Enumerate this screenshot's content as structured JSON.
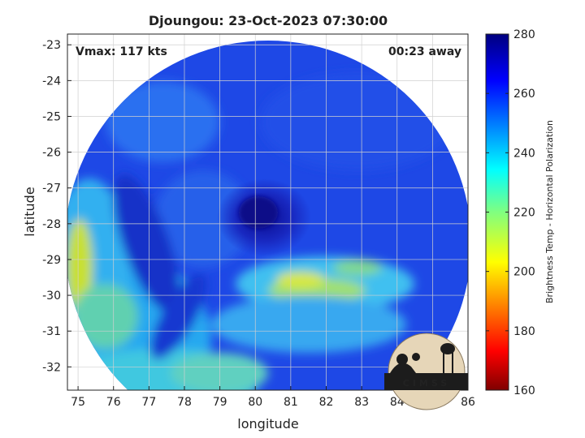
{
  "chart_data": {
    "type": "heatmap",
    "title": "Djoungou: 23-Oct-2023 07:30:00",
    "annotation_left": "Vmax: 117 kts",
    "annotation_right": "00:23 away",
    "xlabel": "longitude",
    "ylabel": "latitude",
    "xlim": [
      74.7,
      86.0
    ],
    "ylim": [
      -32.65,
      -22.7
    ],
    "xticks": [
      "75",
      "76",
      "77",
      "78",
      "79",
      "80",
      "81",
      "82",
      "83",
      "84",
      "85",
      "86"
    ],
    "yticks": [
      "-23",
      "-24",
      "-25",
      "-26",
      "-27",
      "-28",
      "-29",
      "-30",
      "-31",
      "-32"
    ],
    "grid": true,
    "colorbar": {
      "label": "Brightness Temp - Horizontal Polarization",
      "min": 160,
      "max": 280,
      "ticks": [
        "160",
        "180",
        "200",
        "220",
        "240",
        "260",
        "280"
      ],
      "colormap": "jet"
    },
    "swath_center": [
      80.3,
      -27.6
    ],
    "eye_center": [
      80.5,
      -27.9
    ],
    "logo_text": "CIMSS"
  }
}
